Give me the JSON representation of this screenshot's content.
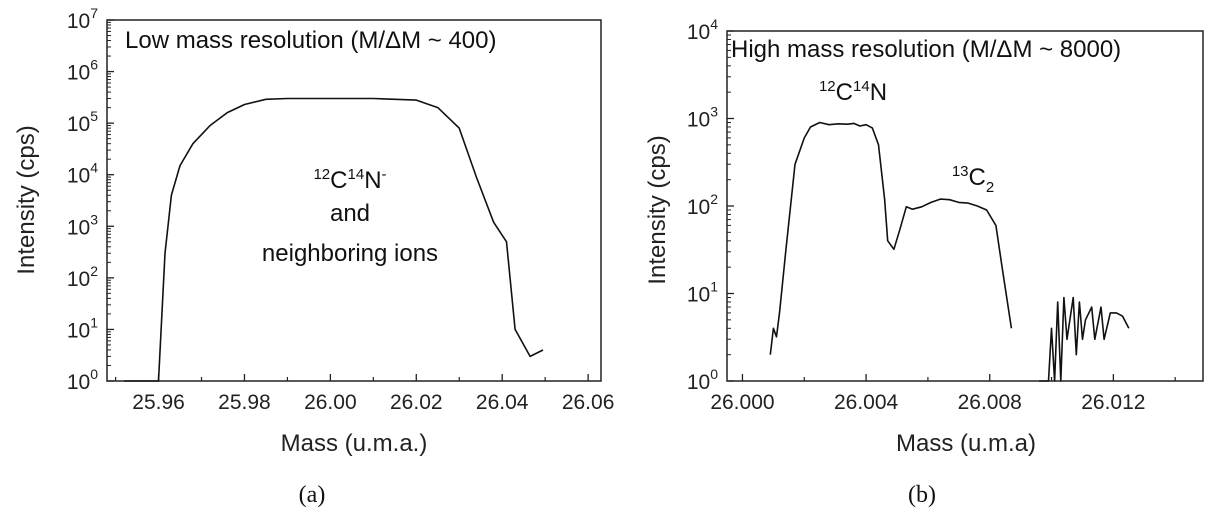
{
  "panels": [
    {
      "caption": "(a)",
      "chart_data": {
        "type": "line",
        "title": "Low mass resolution (M/ΔM ~ 400)",
        "xlabel": "Mass (u.m.a.)",
        "ylabel": "Intensity (cps)",
        "xlim": [
          25.948,
          26.063
        ],
        "ylim_log10": [
          0,
          7
        ],
        "yscale": "log",
        "xticks": [
          25.96,
          25.98,
          26.0,
          26.02,
          26.04,
          26.06
        ],
        "xtick_labels": [
          "25.96",
          "25.98",
          "26.00",
          "26.02",
          "26.04",
          "26.06"
        ],
        "yticks_exponents": [
          0,
          1,
          2,
          3,
          4,
          5,
          6,
          7
        ],
        "ytick_base": "10",
        "annotation": {
          "mass1": "12",
          "elem1": "C",
          "mass2": "14",
          "elem2": "N",
          "charge": "-",
          "line2": "and",
          "line3": "neighboring ions"
        },
        "series": [
          {
            "x": [
              25.952,
              25.9595,
              25.96,
              25.9615,
              25.963,
              25.965,
              25.968,
              25.972,
              25.976,
              25.98,
              25.985,
              25.99,
              26.0,
              26.01,
              26.02,
              26.025,
              26.03,
              26.034,
              26.038,
              26.041,
              26.043,
              26.0465,
              26.0495
            ],
            "y": [
              1,
              1,
              1,
              300,
              4000,
              15000,
              40000,
              90000,
              160000,
              230000,
              290000,
              300000,
              300000,
              300000,
              280000,
              200000,
              80000,
              9000,
              1200,
              500,
              10,
              3,
              4
            ]
          }
        ]
      }
    },
    {
      "caption": "(b)",
      "chart_data": {
        "type": "line",
        "title": "High mass resolution (M/ΔM ~ 8000)",
        "xlabel": "Mass (u.m.a)",
        "ylabel": "Intensity (cps)",
        "xlim": [
          25.9995,
          26.0149
        ],
        "ylim_log10": [
          0,
          4
        ],
        "yscale": "log",
        "xticks": [
          26.0,
          26.004,
          26.008,
          26.012
        ],
        "xtick_labels": [
          "26.000",
          "26.004",
          "26.008",
          "26.012"
        ],
        "yticks_exponents": [
          0,
          1,
          2,
          3,
          4
        ],
        "ytick_base": "10",
        "annotations": [
          {
            "mass1": "12",
            "elem1": "C",
            "mass2": "14",
            "elem2": "N"
          },
          {
            "mass1": "13",
            "elem1": "C",
            "sub": "2"
          }
        ],
        "series": [
          {
            "segments": [
              {
                "x": [
                  26.0009,
                  26.001,
                  26.0011,
                  26.0012,
                  26.0014,
                  26.0017,
                  26.002,
                  26.0022,
                  26.0025,
                  26.0028,
                  26.0031,
                  26.0034,
                  26.0036,
                  26.0038,
                  26.004,
                  26.0042,
                  26.0044,
                  26.0046,
                  26.0047,
                  26.0049,
                  26.0051,
                  26.0053,
                  26.0055,
                  26.0058,
                  26.0061,
                  26.0064,
                  26.0067,
                  26.007,
                  26.0073,
                  26.0076,
                  26.0079,
                  26.0082,
                  26.0084,
                  26.0087
                ],
                "y": [
                  2,
                  4,
                  3.2,
                  6,
                  30,
                  300,
                  600,
                  800,
                  900,
                  850,
                  870,
                  860,
                  880,
                  820,
                  850,
                  780,
                  500,
                  120,
                  40,
                  32,
                  55,
                  98,
                  92,
                  98,
                  110,
                  120,
                  118,
                  110,
                  108,
                  100,
                  90,
                  60,
                  20,
                  4
                ]
              },
              {
                "x": [
                  26.0096,
                  26.0099,
                  26.01,
                  26.0101,
                  26.0102,
                  26.0103,
                  26.0104,
                  26.0105,
                  26.0107,
                  26.0108,
                  26.0109,
                  26.011,
                  26.0111,
                  26.0113,
                  26.0114,
                  26.0116,
                  26.0117,
                  26.0119,
                  26.0121,
                  26.0123,
                  26.0125
                ],
                "y": [
                  1,
                  1,
                  4,
                  1,
                  8,
                  1,
                  9,
                  3,
                  9,
                  2,
                  8,
                  3,
                  5,
                  7,
                  3,
                  7,
                  3,
                  6,
                  6,
                  5.5,
                  4
                ]
              }
            ]
          }
        ]
      }
    }
  ]
}
